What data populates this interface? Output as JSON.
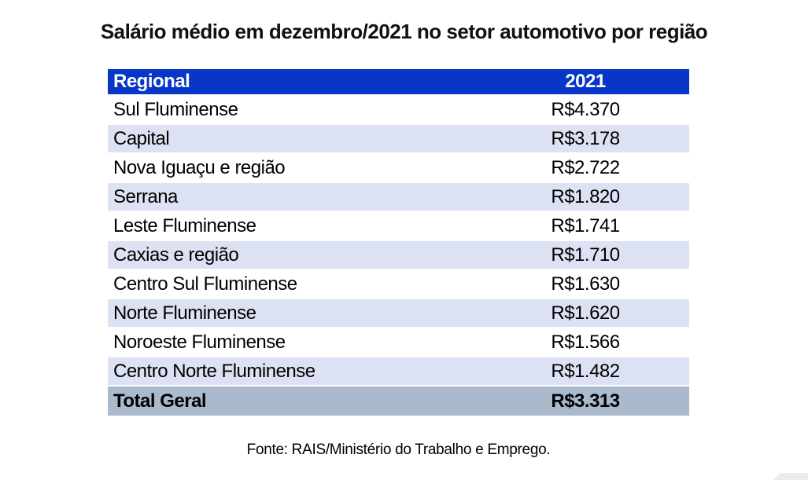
{
  "title": "Salário médio em dezembro/2021 no setor automotivo por região",
  "table": {
    "columns": [
      "Regional",
      "2021"
    ],
    "rows": [
      {
        "regional": "Sul Fluminense",
        "value": "R$4.370"
      },
      {
        "regional": "Capital",
        "value": "R$3.178"
      },
      {
        "regional": "Nova Iguaçu e região",
        "value": "R$2.722"
      },
      {
        "regional": "Serrana",
        "value": "R$1.820"
      },
      {
        "regional": "Leste Fluminense",
        "value": "R$1.741"
      },
      {
        "regional": "Caxias e região",
        "value": "R$1.710"
      },
      {
        "regional": "Centro Sul Fluminense",
        "value": "R$1.630"
      },
      {
        "regional": "Norte Fluminense",
        "value": "R$1.620"
      },
      {
        "regional": "Noroeste Fluminense",
        "value": "R$1.566"
      },
      {
        "regional": "Centro Norte Fluminense",
        "value": "R$1.482"
      }
    ],
    "total": {
      "regional": "Total Geral",
      "value": "R$3.313"
    }
  },
  "footer": "Fonte: RAIS/Ministério do Trabalho e Emprego.",
  "colors": {
    "header_bg": "#0736C8",
    "header_text": "#FFFFFF",
    "row_alt_bg": "#DCE2F3",
    "total_bg": "#ABB9CC",
    "text": "#000000"
  },
  "chart_data": {
    "type": "table",
    "title": "Salário médio em dezembro/2021 no setor automotivo por região",
    "columns": [
      "Regional",
      "2021"
    ],
    "categories": [
      "Sul Fluminense",
      "Capital",
      "Nova Iguaçu e região",
      "Serrana",
      "Leste Fluminense",
      "Caxias e região",
      "Centro Sul Fluminense",
      "Norte Fluminense",
      "Noroeste Fluminense",
      "Centro Norte Fluminense"
    ],
    "values": [
      4370,
      3178,
      2722,
      1820,
      1741,
      1710,
      1630,
      1620,
      1566,
      1482
    ],
    "total": {
      "label": "Total Geral",
      "value": 3313
    },
    "currency": "R$",
    "source": "Fonte: RAIS/Ministério do Trabalho e Emprego."
  }
}
